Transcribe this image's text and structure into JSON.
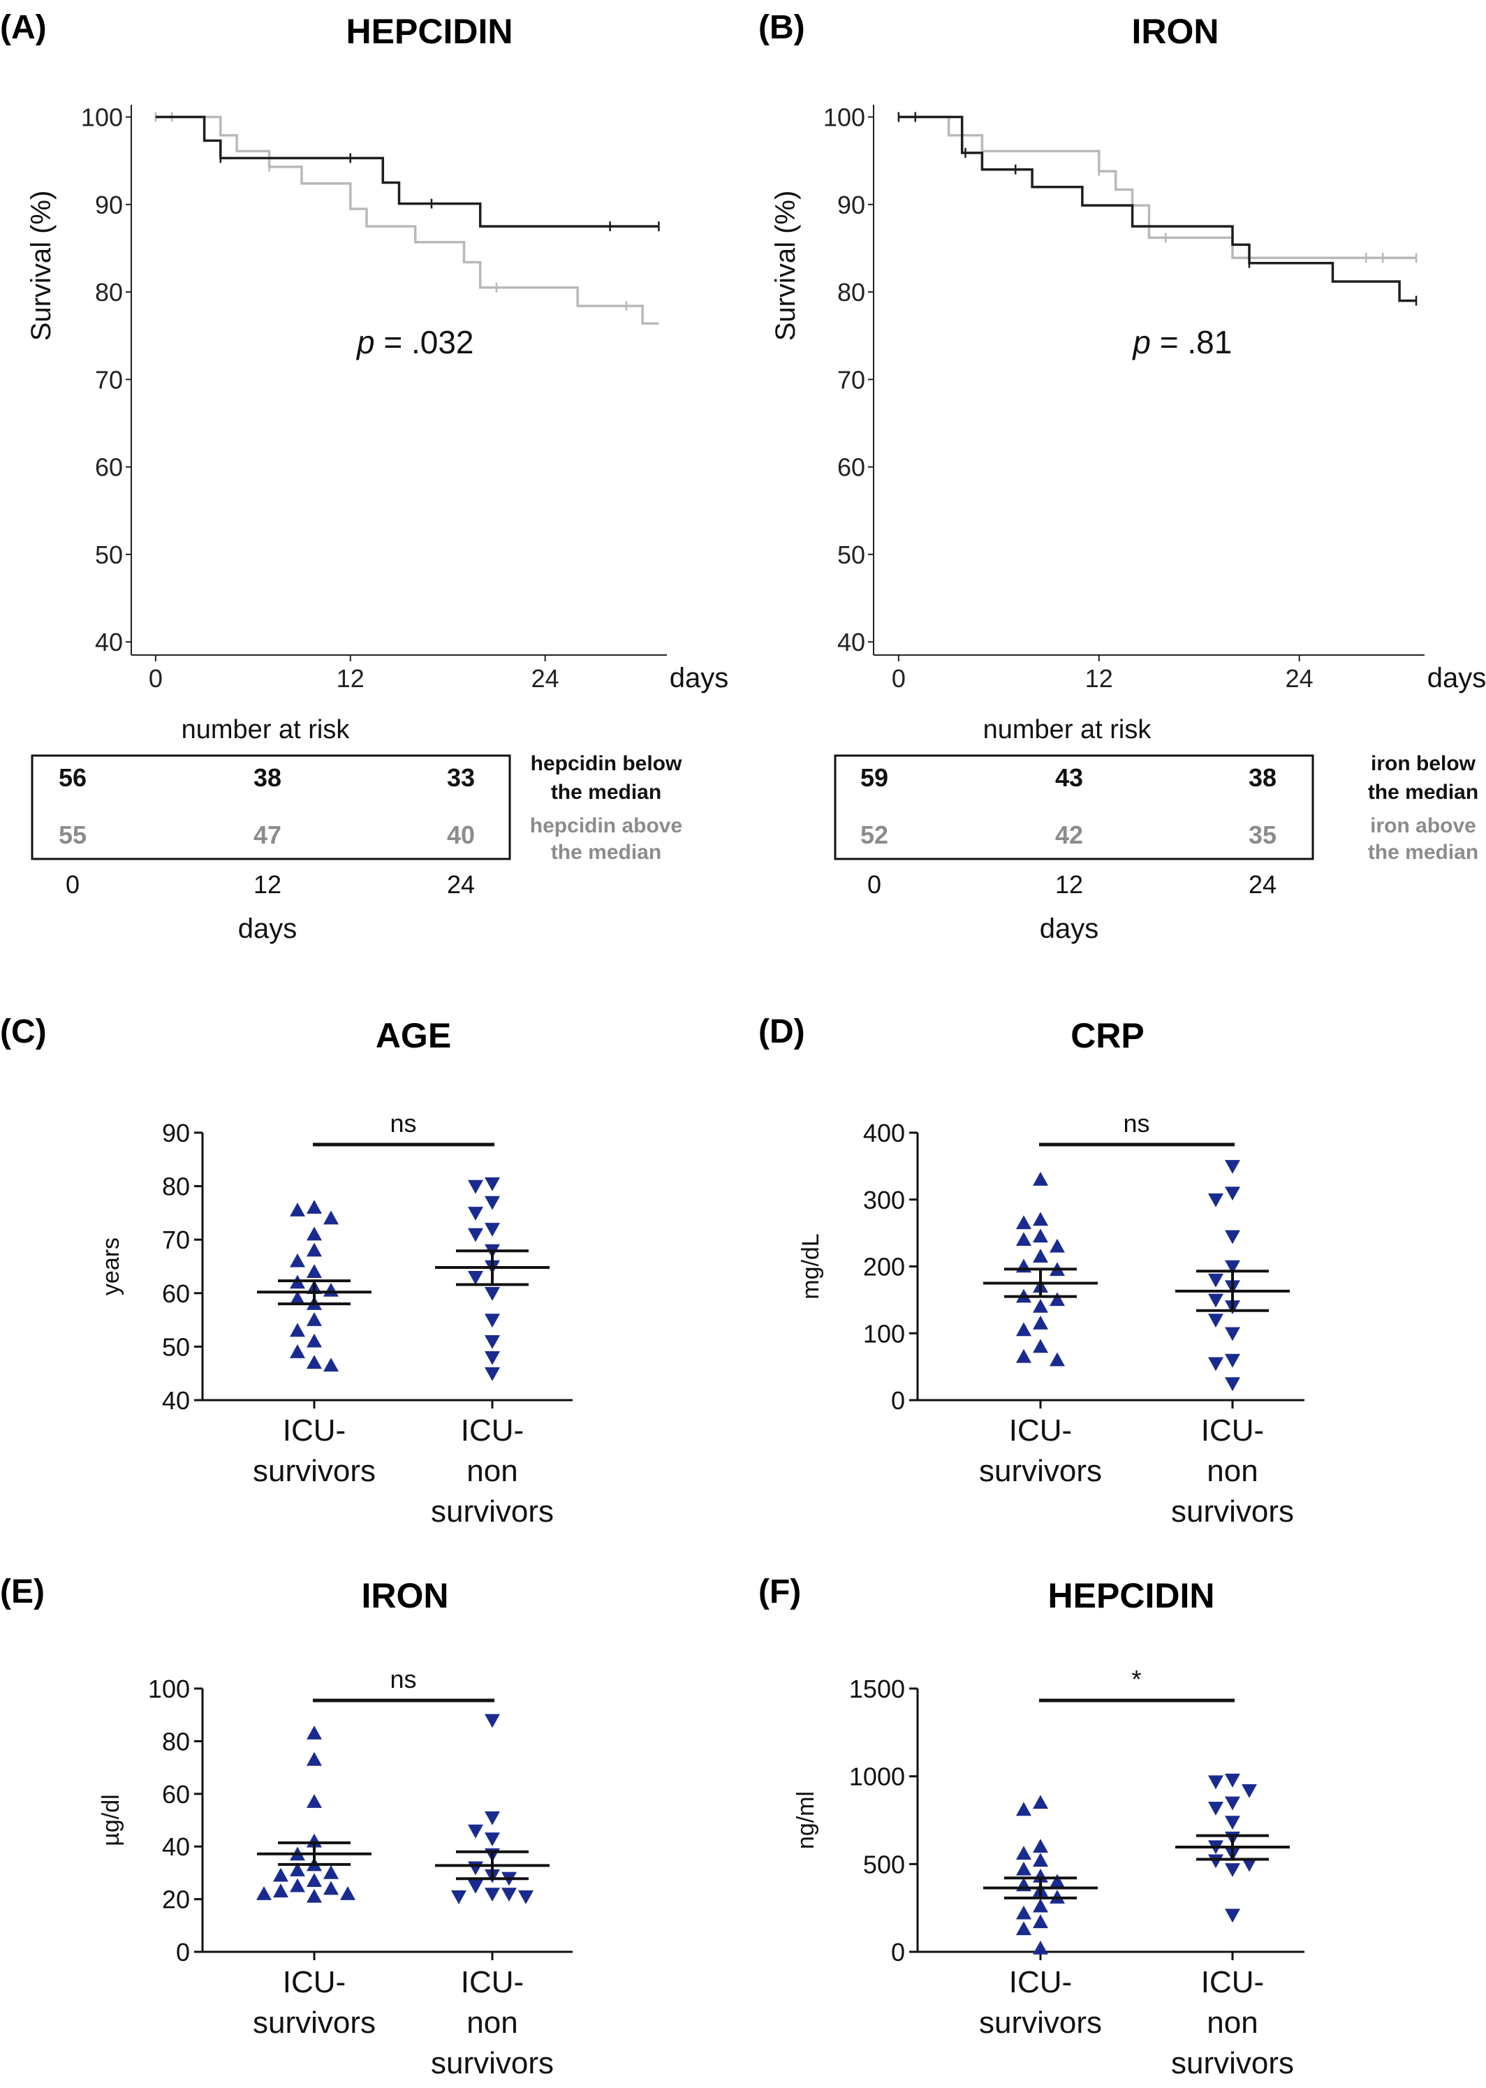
{
  "panels": {
    "A": {
      "letter": "(A)",
      "title": "HEPCIDIN"
    },
    "B": {
      "letter": "(B)",
      "title": "IRON"
    },
    "C": {
      "letter": "(C)",
      "title": "AGE"
    },
    "D": {
      "letter": "(D)",
      "title": "CRP"
    },
    "E": {
      "letter": "(E)",
      "title": "IRON"
    },
    "F": {
      "letter": "(F)",
      "title": "HEPCIDIN"
    }
  },
  "chart_data": [
    {
      "panel": "A",
      "type": "line",
      "title": "HEPCIDIN",
      "ylabel": "Survival (%)",
      "xlabel": "days",
      "xlim": [
        -1.5,
        31.5
      ],
      "ylim": [
        38.5,
        101
      ],
      "xticks": [
        "0",
        "12",
        "24"
      ],
      "xtick_values": [
        0,
        12,
        24
      ],
      "yticks": [
        "40",
        "50",
        "60",
        "70",
        "80",
        "90",
        "100"
      ],
      "ytick_values": [
        40,
        50,
        60,
        70,
        80,
        90,
        100
      ],
      "annotation": {
        "p_symbol": "p",
        "p_text": "= .032",
        "x": 16,
        "y": 73
      },
      "series": [
        {
          "name": "hepcidin below the median",
          "color": "#1e1e1e",
          "steps": [
            [
              0,
              100
            ],
            [
              3,
              100
            ],
            [
              3,
              97.3
            ],
            [
              4,
              97.3
            ],
            [
              4,
              95.3
            ],
            [
              14,
              95.3
            ],
            [
              14,
              92.5
            ],
            [
              15,
              92.5
            ],
            [
              15,
              90.1
            ],
            [
              20,
              90.1
            ],
            [
              20,
              87.5
            ],
            [
              31,
              87.5
            ]
          ],
          "censor": [
            [
              4,
              95.3
            ],
            [
              12,
              95.3
            ],
            [
              17,
              90.1
            ],
            [
              28,
              87.5
            ],
            [
              31,
              87.5
            ]
          ]
        },
        {
          "name": "hepcidin above the median",
          "color": "#b9b9b9",
          "steps": [
            [
              0,
              100
            ],
            [
              4,
              100
            ],
            [
              4,
              97.9
            ],
            [
              5,
              97.9
            ],
            [
              5,
              96.1
            ],
            [
              7,
              96.1
            ],
            [
              7,
              94.3
            ],
            [
              9,
              94.3
            ],
            [
              9,
              92.4
            ],
            [
              12,
              92.4
            ],
            [
              12,
              89.5
            ],
            [
              13,
              89.5
            ],
            [
              13,
              87.5
            ],
            [
              16,
              87.5
            ],
            [
              16,
              85.7
            ],
            [
              19,
              85.7
            ],
            [
              19,
              83.4
            ],
            [
              20,
              83.4
            ],
            [
              20,
              80.5
            ],
            [
              26,
              80.5
            ],
            [
              26,
              78.4
            ],
            [
              30,
              78.4
            ],
            [
              30,
              76.4
            ],
            [
              31,
              76.4
            ]
          ],
          "censor": [
            [
              0,
              100
            ],
            [
              1,
              100
            ],
            [
              7,
              94.3
            ],
            [
              21,
              80.5
            ],
            [
              29,
              78.4
            ]
          ]
        }
      ],
      "risk_table": {
        "header": "number at risk",
        "xticks": [
          "0",
          "12",
          "24"
        ],
        "xlabel": "days",
        "rows": [
          {
            "label1": "hepcidin below",
            "label2": "the median",
            "values": [
              "56",
              "38",
              "33"
            ],
            "color": "#111111"
          },
          {
            "label1": "hepcidin above",
            "label2": "the median",
            "values": [
              "55",
              "47",
              "40"
            ],
            "color": "#8c8c8c"
          }
        ]
      }
    },
    {
      "panel": "B",
      "type": "line",
      "title": "IRON",
      "ylabel": "Survival (%)",
      "xlabel": "days",
      "xlim": [
        -1.5,
        31.5
      ],
      "ylim": [
        38.5,
        101
      ],
      "xticks": [
        "0",
        "12",
        "24"
      ],
      "xtick_values": [
        0,
        12,
        24
      ],
      "yticks": [
        "40",
        "50",
        "60",
        "70",
        "80",
        "90",
        "100"
      ],
      "ytick_values": [
        40,
        50,
        60,
        70,
        80,
        90,
        100
      ],
      "annotation": {
        "p_symbol": "p",
        "p_text": "= .81",
        "x": 17,
        "y": 73
      },
      "series": [
        {
          "name": "iron below the median",
          "color": "#1e1e1e",
          "steps": [
            [
              0,
              100
            ],
            [
              3.8,
              100
            ],
            [
              3.8,
              95.9
            ],
            [
              5,
              95.9
            ],
            [
              5,
              94
            ],
            [
              8,
              94
            ],
            [
              8,
              92
            ],
            [
              11,
              92
            ],
            [
              11,
              89.9
            ],
            [
              14,
              89.9
            ],
            [
              14,
              87.5
            ],
            [
              20,
              87.5
            ],
            [
              20,
              85.4
            ],
            [
              21,
              85.4
            ],
            [
              21,
              83.3
            ],
            [
              26,
              83.3
            ],
            [
              26,
              81.2
            ],
            [
              30,
              81.2
            ],
            [
              30,
              79
            ],
            [
              31,
              79
            ]
          ],
          "censor": [
            [
              0,
              100
            ],
            [
              1,
              100
            ],
            [
              4,
              95.9
            ],
            [
              7,
              94
            ],
            [
              21,
              83.3
            ],
            [
              31,
              79
            ]
          ]
        },
        {
          "name": "iron above the median",
          "color": "#b9b9b9",
          "steps": [
            [
              0,
              100
            ],
            [
              3,
              100
            ],
            [
              3,
              97.9
            ],
            [
              5,
              97.9
            ],
            [
              5,
              96.1
            ],
            [
              12,
              96.1
            ],
            [
              12,
              93.8
            ],
            [
              13,
              93.8
            ],
            [
              13,
              91.7
            ],
            [
              14,
              91.7
            ],
            [
              14,
              89.9
            ],
            [
              15,
              89.9
            ],
            [
              15,
              86.2
            ],
            [
              20,
              86.2
            ],
            [
              20,
              83.9
            ],
            [
              31,
              83.9
            ]
          ],
          "censor": [
            [
              0,
              100
            ],
            [
              1,
              100
            ],
            [
              12,
              93.8
            ],
            [
              16,
              86.2
            ],
            [
              28,
              83.9
            ],
            [
              29,
              83.9
            ],
            [
              31,
              83.9
            ]
          ]
        }
      ],
      "risk_table": {
        "header": "number at risk",
        "xticks": [
          "0",
          "12",
          "24"
        ],
        "xlabel": "days",
        "rows": [
          {
            "label1": "iron below",
            "label2": "the median",
            "values": [
              "59",
              "43",
              "38"
            ],
            "color": "#111111"
          },
          {
            "label1": "iron above",
            "label2": "the median",
            "values": [
              "52",
              "42",
              "35"
            ],
            "color": "#8c8c8c"
          }
        ]
      }
    },
    {
      "panel": "C",
      "type": "scatter",
      "title": "AGE",
      "ylabel": "years",
      "ylim": [
        40,
        90
      ],
      "yticks": [
        40,
        50,
        60,
        70,
        80,
        90
      ],
      "categories": [
        [
          "ICU-",
          "survivors"
        ],
        [
          "ICU-",
          "non",
          "survivors"
        ]
      ],
      "significance": "ns",
      "color": "#1a2b8f",
      "groups": [
        {
          "marker": "triangle-up",
          "mean": 60.2,
          "sem": [
            58.0,
            62.3
          ],
          "values": [
            76,
            75.5,
            74,
            71,
            68,
            66,
            64,
            62,
            61,
            60.5,
            59,
            58,
            55,
            53,
            51,
            49,
            47,
            46.5
          ]
        },
        {
          "marker": "triangle-down",
          "mean": 64.8,
          "sem": [
            61.6,
            67.9
          ],
          "values": [
            80.5,
            80,
            77,
            75,
            72,
            71,
            68,
            65,
            63,
            60,
            55,
            51,
            48,
            45
          ]
        }
      ]
    },
    {
      "panel": "D",
      "type": "scatter",
      "title": "CRP",
      "ylabel": "mg/dL",
      "ylim": [
        0,
        400
      ],
      "yticks": [
        0,
        100,
        200,
        300,
        400
      ],
      "categories": [
        [
          "ICU-",
          "survivors"
        ],
        [
          "ICU-",
          "non",
          "survivors"
        ]
      ],
      "significance": "ns",
      "color": "#1a2b8f",
      "groups": [
        {
          "marker": "triangle-up",
          "mean": 175,
          "sem": [
            155,
            196
          ],
          "values": [
            330,
            270,
            265,
            245,
            240,
            230,
            215,
            200,
            195,
            170,
            155,
            150,
            140,
            115,
            105,
            80,
            65,
            60
          ]
        },
        {
          "marker": "triangle-down",
          "mean": 163,
          "sem": [
            134,
            193
          ],
          "values": [
            350,
            310,
            300,
            245,
            200,
            180,
            170,
            150,
            140,
            120,
            100,
            60,
            55,
            25
          ]
        }
      ]
    },
    {
      "panel": "E",
      "type": "scatter",
      "title": "IRON",
      "ylabel": "µg/dl",
      "ylim": [
        0,
        100
      ],
      "yticks": [
        0,
        20,
        40,
        60,
        80,
        100
      ],
      "categories": [
        [
          "ICU-",
          "survivors"
        ],
        [
          "ICU-",
          "non",
          "survivors"
        ]
      ],
      "significance": "ns",
      "color": "#1a2b8f",
      "groups": [
        {
          "marker": "triangle-up",
          "mean": 37.2,
          "sem": [
            33.2,
            41.4
          ],
          "values": [
            83,
            73,
            57,
            42,
            37,
            33,
            31,
            30,
            29,
            27,
            25,
            24,
            23,
            22,
            22,
            21
          ]
        },
        {
          "marker": "triangle-down",
          "mean": 32.8,
          "sem": [
            27.8,
            38.0
          ],
          "values": [
            88,
            51,
            46,
            43,
            37,
            32,
            29,
            28,
            25,
            22,
            22,
            21,
            21
          ]
        }
      ]
    },
    {
      "panel": "F",
      "type": "scatter",
      "title": "HEPCIDIN",
      "ylabel": "ng/ml",
      "ylim": [
        0,
        1500
      ],
      "yticks": [
        0,
        500,
        1000,
        1500
      ],
      "categories": [
        [
          "ICU-",
          "survivors"
        ],
        [
          "ICU-",
          "non",
          "survivors"
        ]
      ],
      "significance": "*",
      "color": "#1a2b8f",
      "groups": [
        {
          "marker": "triangle-up",
          "mean": 364,
          "sem": [
            307,
            421
          ],
          "values": [
            850,
            810,
            600,
            560,
            520,
            470,
            430,
            400,
            380,
            350,
            310,
            260,
            220,
            170,
            130,
            20
          ]
        },
        {
          "marker": "triangle-down",
          "mean": 597,
          "sem": [
            527,
            662
          ],
          "values": [
            980,
            970,
            920,
            850,
            820,
            740,
            650,
            600,
            560,
            520,
            500,
            470,
            210
          ]
        }
      ]
    }
  ]
}
